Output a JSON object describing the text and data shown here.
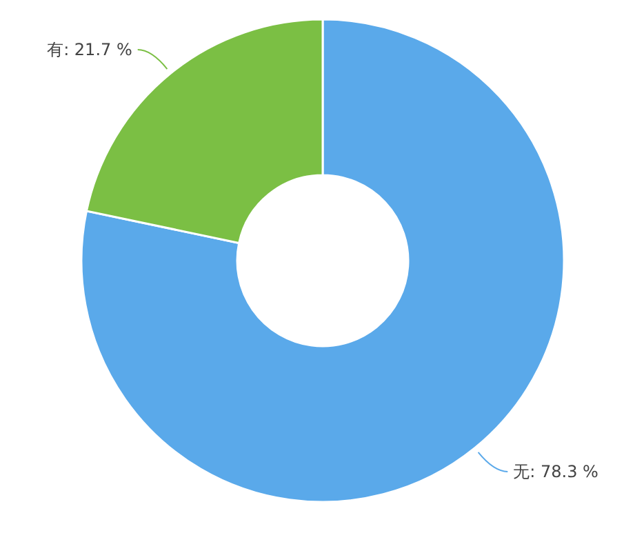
{
  "chart_data": {
    "type": "donut",
    "categories": [
      "无",
      "有"
    ],
    "values": [
      78.3,
      21.7
    ],
    "colors": [
      "#5aa9ea",
      "#7bbf44"
    ],
    "value_labels": [
      "78.3 %",
      "21.7 %"
    ]
  }
}
